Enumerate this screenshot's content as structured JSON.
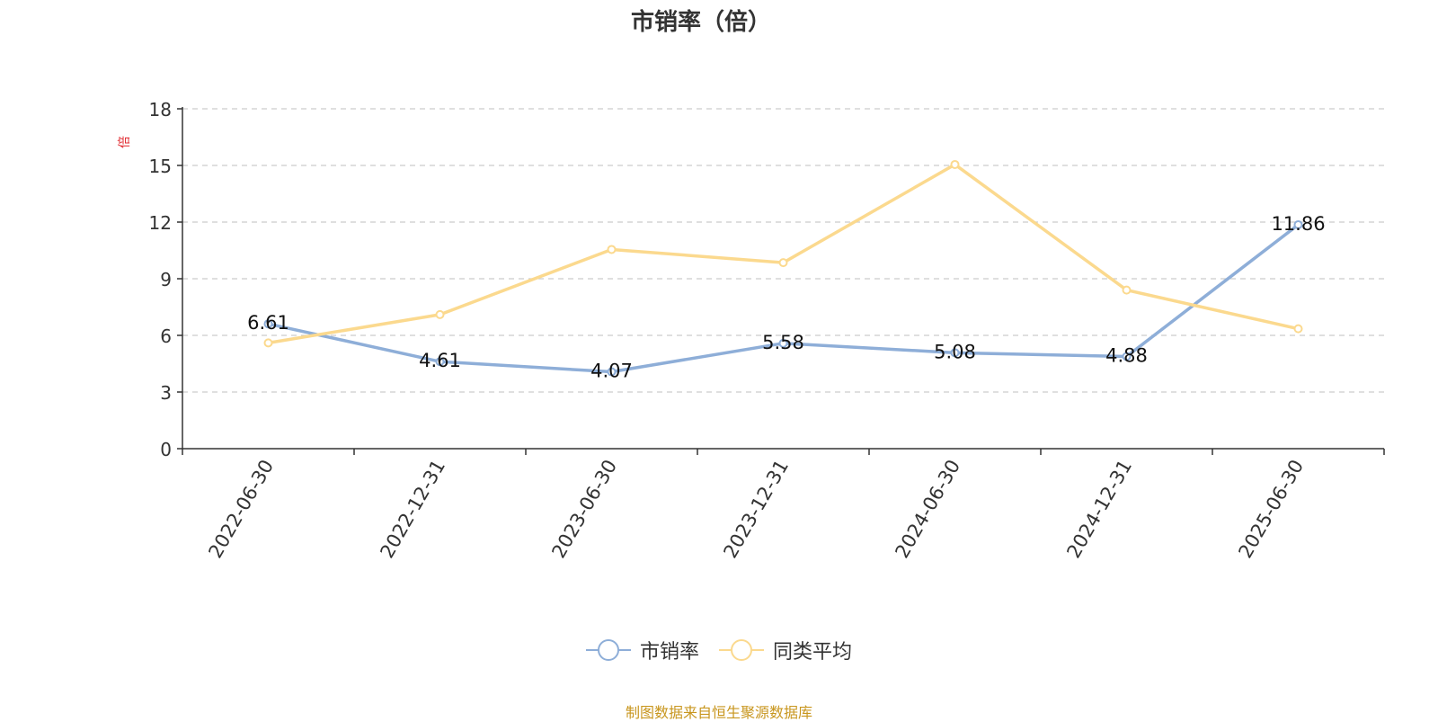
{
  "chart_data": {
    "type": "line",
    "title": "市销率（倍）",
    "ylabel": "倍",
    "ylim": [
      0,
      18
    ],
    "yticks": [
      "0",
      "3",
      "6",
      "9",
      "12",
      "15",
      "18"
    ],
    "grid": true,
    "legend_position": "bottom",
    "categories": [
      "2022-06-30",
      "2022-12-31",
      "2023-06-30",
      "2023-12-31",
      "2024-06-30",
      "2024-12-31",
      "2025-06-30"
    ],
    "series": [
      {
        "name": "市销率",
        "color": "#8eaed8",
        "values": [
          6.61,
          4.61,
          4.07,
          5.58,
          5.08,
          4.88,
          11.86
        ],
        "labels": [
          "6.61",
          "4.61",
          "4.07",
          "5.58",
          "5.08",
          "4.88",
          "11.86"
        ]
      },
      {
        "name": "同类平均",
        "color": "#fbd98e",
        "values": [
          5.6,
          7.1,
          10.55,
          9.85,
          15.05,
          8.4,
          6.35
        ]
      }
    ]
  },
  "source_note": "制图数据来自恒生聚源数据库"
}
